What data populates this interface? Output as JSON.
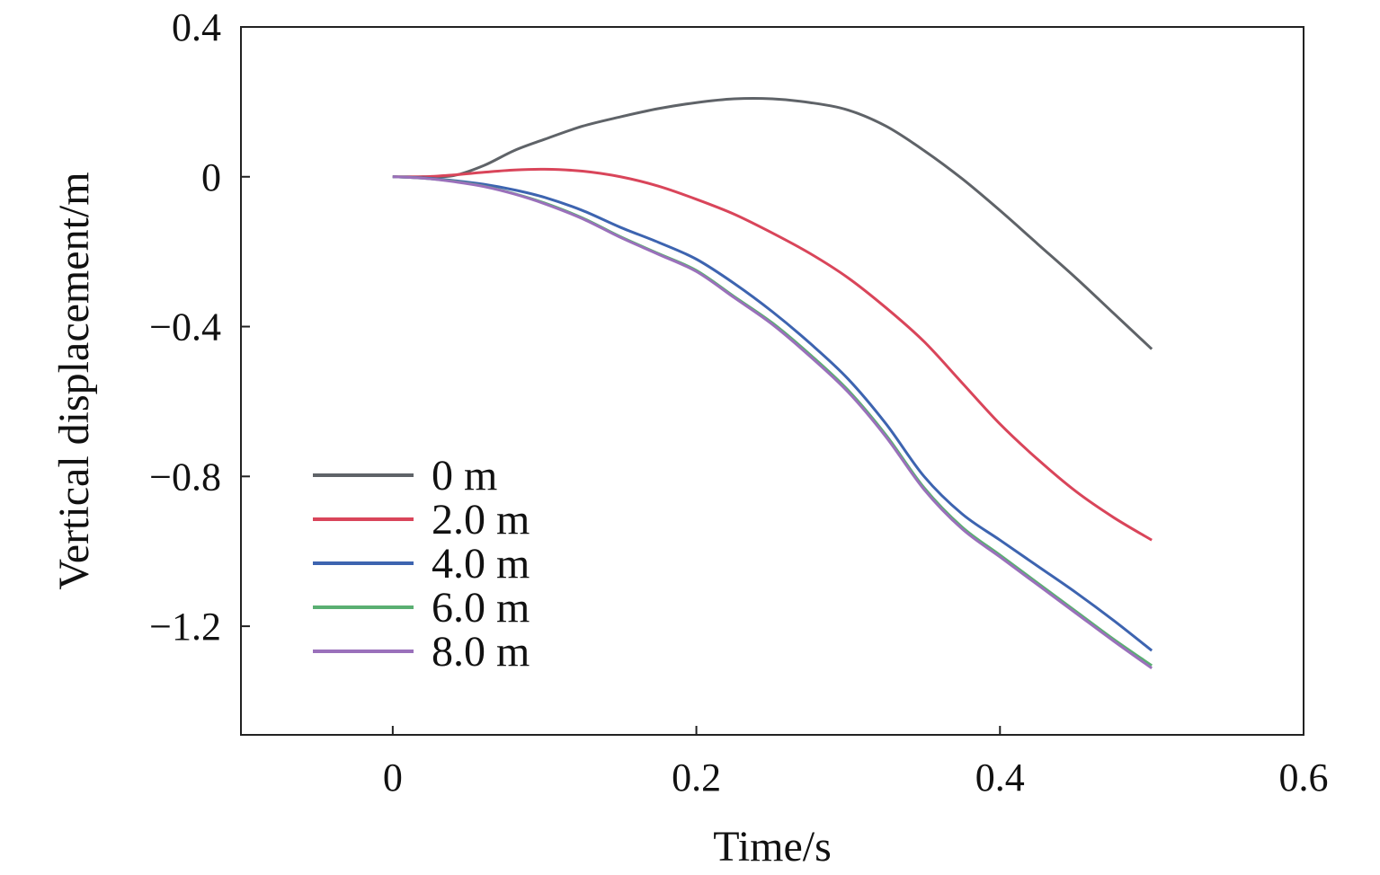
{
  "chart_data": {
    "type": "line",
    "title": "",
    "xlabel": "Time/s",
    "ylabel": "Vertical displacement/m",
    "xlim": [
      -0.1,
      0.6
    ],
    "ylim": [
      -1.49,
      0.4
    ],
    "xticks": [
      0,
      0.2,
      0.4,
      0.6
    ],
    "xtick_labels": [
      "0",
      "0.2",
      "0.4",
      "0.6"
    ],
    "yticks": [
      0.4,
      0,
      -0.4,
      -0.8,
      -1.2
    ],
    "ytick_labels": [
      "0.4",
      "0",
      "−0.4",
      "−0.8",
      "−1.2"
    ],
    "grid": false,
    "legend_position": "bottom-left",
    "x": [
      0,
      0.02,
      0.04,
      0.06,
      0.08,
      0.1,
      0.125,
      0.15,
      0.175,
      0.2,
      0.225,
      0.25,
      0.275,
      0.3,
      0.325,
      0.35,
      0.375,
      0.4,
      0.425,
      0.45,
      0.475,
      0.5
    ],
    "series": [
      {
        "name": "0 m",
        "color": "#5f6368",
        "values": [
          0,
          0,
          0.003,
          0.03,
          0.07,
          0.1,
          0.135,
          0.16,
          0.182,
          0.198,
          0.208,
          0.208,
          0.198,
          0.178,
          0.135,
          0.07,
          -0.005,
          -0.09,
          -0.18,
          -0.27,
          -0.365,
          -0.46
        ]
      },
      {
        "name": "2.0 m",
        "color": "#d9455a",
        "values": [
          0,
          0,
          0.005,
          0.012,
          0.018,
          0.02,
          0.015,
          0.0,
          -0.025,
          -0.06,
          -0.1,
          -0.15,
          -0.205,
          -0.27,
          -0.35,
          -0.44,
          -0.55,
          -0.66,
          -0.755,
          -0.84,
          -0.91,
          -0.97
        ]
      },
      {
        "name": "4.0 m",
        "color": "#3d64b0",
        "values": [
          0,
          -0.003,
          -0.01,
          -0.02,
          -0.035,
          -0.055,
          -0.09,
          -0.135,
          -0.175,
          -0.22,
          -0.285,
          -0.36,
          -0.445,
          -0.54,
          -0.66,
          -0.8,
          -0.9,
          -0.97,
          -1.04,
          -1.11,
          -1.185,
          -1.265
        ]
      },
      {
        "name": "6.0 m",
        "color": "#5aaf72",
        "values": [
          0,
          -0.004,
          -0.012,
          -0.025,
          -0.045,
          -0.07,
          -0.11,
          -0.16,
          -0.205,
          -0.25,
          -0.32,
          -0.39,
          -0.475,
          -0.57,
          -0.69,
          -0.83,
          -0.935,
          -1.01,
          -1.085,
          -1.16,
          -1.235,
          -1.305
        ]
      },
      {
        "name": "8.0 m",
        "color": "#9a70bb",
        "values": [
          0,
          -0.004,
          -0.013,
          -0.026,
          -0.046,
          -0.072,
          -0.112,
          -0.162,
          -0.207,
          -0.253,
          -0.323,
          -0.394,
          -0.48,
          -0.575,
          -0.695,
          -0.835,
          -0.94,
          -1.015,
          -1.09,
          -1.165,
          -1.24,
          -1.312
        ]
      }
    ]
  }
}
